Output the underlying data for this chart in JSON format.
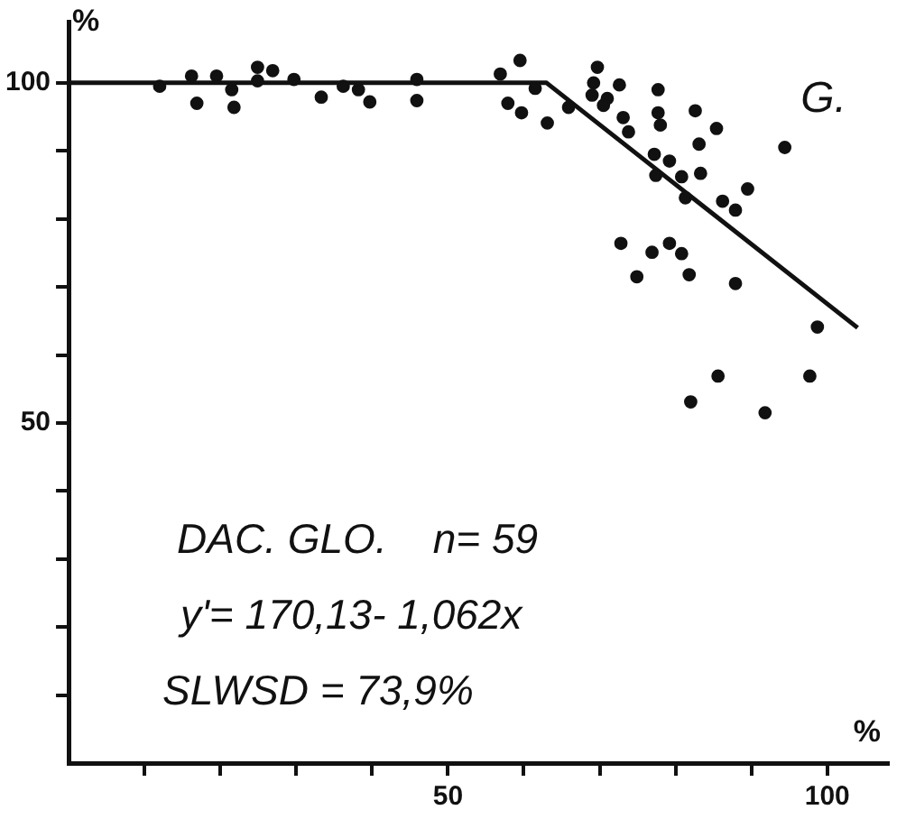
{
  "chart_data": {
    "type": "scatter",
    "xlabel": "%",
    "ylabel": "%",
    "xlim": [
      0,
      108
    ],
    "ylim": [
      0,
      109
    ],
    "xticks": [
      {
        "value": 10,
        "label": null
      },
      {
        "value": 20,
        "label": null
      },
      {
        "value": 30,
        "label": null
      },
      {
        "value": 40,
        "label": null
      },
      50,
      {
        "value": 60,
        "label": null
      },
      {
        "value": 70,
        "label": null
      },
      {
        "value": 80,
        "label": null
      },
      {
        "value": 90,
        "label": null
      },
      100
    ],
    "yticks": [
      {
        "value": 10,
        "label": null
      },
      {
        "value": 20,
        "label": null
      },
      {
        "value": 30,
        "label": null
      },
      {
        "value": 40,
        "label": null
      },
      50,
      {
        "value": 60,
        "label": null
      },
      {
        "value": 70,
        "label": null
      },
      {
        "value": 80,
        "label": null
      },
      {
        "value": 90,
        "label": null
      },
      100
    ],
    "grid": false,
    "legend": false,
    "marker": "circle",
    "series": [
      {
        "color": "#111111",
        "x": [
          12,
          16.2,
          16.9,
          19.5,
          21.5,
          21.8,
          24.9,
          24.9,
          26.9,
          29.7,
          33.3,
          36.2,
          38.2,
          39.7,
          45.9,
          45.9,
          56.9,
          59.5,
          61.5,
          57.9,
          59.7,
          63.1,
          65.9,
          69.7,
          69.2,
          72.6,
          69,
          71,
          70.5,
          77.7,
          73.1,
          73.8,
          77.7,
          78,
          82.6,
          85.4,
          94.4,
          83.1,
          77.2,
          79.2,
          77.4,
          80.8,
          83.3,
          89.5,
          81.3,
          86.2,
          87.9,
          72.8,
          76.9,
          79.2,
          80.8,
          74.9,
          81.8,
          87.9,
          98.7,
          85.6,
          97.7,
          82,
          91.8
        ],
        "values": [
          99.5,
          101,
          97,
          101,
          99,
          96.4,
          102.3,
          100.3,
          101.8,
          100.5,
          97.9,
          99.5,
          99,
          97.2,
          100.5,
          97.4,
          101.3,
          103.3,
          99.2,
          97,
          95.6,
          94.1,
          96.4,
          102.3,
          100,
          99.7,
          98.2,
          97.7,
          96.7,
          99,
          94.9,
          92.8,
          95.6,
          93.8,
          95.9,
          93.3,
          90.5,
          91,
          89.5,
          88.5,
          86.4,
          86.2,
          86.7,
          84.4,
          83.1,
          82.6,
          81.3,
          76.4,
          75.1,
          76.4,
          74.9,
          71.5,
          71.8,
          70.5,
          64.1,
          56.9,
          56.9,
          53.1,
          51.5
        ]
      },
      {
        "type": "line",
        "color": "#111111",
        "marker": "none",
        "x": [
          0,
          63,
          104
        ],
        "values": [
          100,
          100,
          64
        ]
      }
    ],
    "annotations": [
      "G.",
      "DAC. GLO.    n= 59",
      "y'= 170,13- 1,062x",
      "SLWSD = 73,9%"
    ]
  }
}
